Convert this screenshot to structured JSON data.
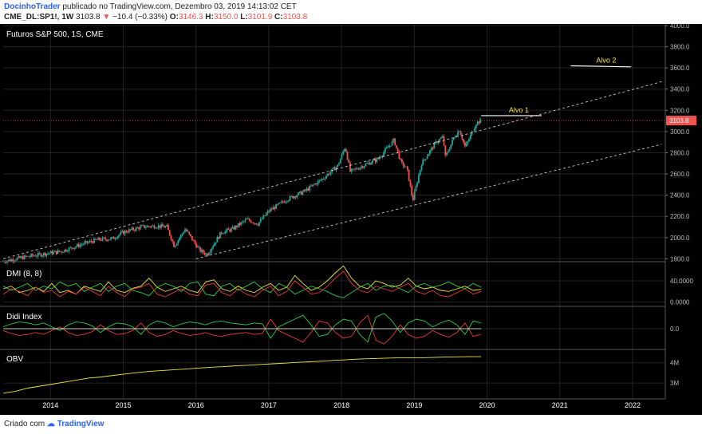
{
  "header": {
    "author": "DocinhoTrader",
    "published_text": "publicado no TradingView.com, Dezembro 03, 2019 14:13:02 CET",
    "symbol": "CME_DL:SP1!, 1W",
    "price": "3103.8",
    "change": "−10.4 (−0.33%)",
    "ohlc": [
      {
        "label": "O:",
        "value": "3146.3"
      },
      {
        "label": "H:",
        "value": "3150.0"
      },
      {
        "label": "L:",
        "value": "3101.9"
      },
      {
        "label": "C:",
        "value": "3103.8"
      }
    ]
  },
  "footer": {
    "created_with": "Criado com",
    "brand": "TradingView"
  },
  "colors": {
    "up": "#26a69a",
    "down": "#ef5350",
    "yellow": "#f0e442",
    "green": "#2ecc40",
    "red": "#e53935",
    "background": "#000000",
    "grid": "#222222"
  },
  "chart_data": [
    {
      "type": "candlestick",
      "title": "Futuros S&P 500, 1S, CME",
      "x_ticks": [
        "2014",
        "2015",
        "2016",
        "2017",
        "2018",
        "2019",
        "2020",
        "2021",
        "2022"
      ],
      "y_ticks": [
        "4000.0",
        "3800.0",
        "3600.0",
        "3400.0",
        "3200.0",
        "3000.0",
        "2800.0",
        "2600.0",
        "2400.0",
        "2200.0",
        "2000.0",
        "1800.0"
      ],
      "ylim": [
        1780,
        4000
      ],
      "xlim": [
        2013.35,
        2022.45
      ],
      "last_price_label": "3103.8",
      "price_path": [
        [
          2013.35,
          1775
        ],
        [
          2013.6,
          1810
        ],
        [
          2013.9,
          1845
        ],
        [
          2014.15,
          1870
        ],
        [
          2014.4,
          1930
        ],
        [
          2014.65,
          1980
        ],
        [
          2014.85,
          1990
        ],
        [
          2015.0,
          2050
        ],
        [
          2015.25,
          2100
        ],
        [
          2015.45,
          2110
        ],
        [
          2015.6,
          2100
        ],
        [
          2015.7,
          1920
        ],
        [
          2015.85,
          2080
        ],
        [
          2016.05,
          1880
        ],
        [
          2016.15,
          1840
        ],
        [
          2016.35,
          2050
        ],
        [
          2016.5,
          2080
        ],
        [
          2016.7,
          2170
        ],
        [
          2016.85,
          2130
        ],
        [
          2017.0,
          2250
        ],
        [
          2017.25,
          2360
        ],
        [
          2017.5,
          2440
        ],
        [
          2017.75,
          2560
        ],
        [
          2017.95,
          2680
        ],
        [
          2018.05,
          2860
        ],
        [
          2018.12,
          2620
        ],
        [
          2018.3,
          2680
        ],
        [
          2018.5,
          2740
        ],
        [
          2018.72,
          2920
        ],
        [
          2018.82,
          2700
        ],
        [
          2018.9,
          2650
        ],
        [
          2018.98,
          2350
        ],
        [
          2019.1,
          2700
        ],
        [
          2019.3,
          2900
        ],
        [
          2019.4,
          2950
        ],
        [
          2019.42,
          2750
        ],
        [
          2019.55,
          2950
        ],
        [
          2019.62,
          3020
        ],
        [
          2019.7,
          2850
        ],
        [
          2019.8,
          3000
        ],
        [
          2019.85,
          3080
        ],
        [
          2019.92,
          3103.8
        ]
      ],
      "annotations": [
        {
          "text": "Alvo 1",
          "x": 2020.3,
          "price": 3150
        },
        {
          "text": "Alvo 2",
          "x": 2021.5,
          "price": 3620
        }
      ],
      "trend_lines": [
        {
          "style": "dashed",
          "from": [
            2013.35,
            1800
          ],
          "to": [
            2022.4,
            3470
          ]
        },
        {
          "style": "dashed",
          "from": [
            2016.0,
            1800
          ],
          "to": [
            2022.4,
            2880
          ]
        }
      ],
      "target_lines": [
        {
          "label": "Alvo 1",
          "from": [
            2019.92,
            3150
          ],
          "to": [
            2020.75,
            3150
          ]
        },
        {
          "label": "Alvo 2",
          "from": [
            2021.15,
            3620
          ],
          "to": [
            2021.98,
            3610
          ]
        }
      ]
    },
    {
      "type": "line",
      "title": "DMI (8, 8)",
      "y_ticks": [
        "40.0000",
        "0.0000"
      ],
      "ylim": [
        -5,
        70
      ],
      "series": [
        {
          "color": "#f0e442",
          "values": [
            25,
            30,
            18,
            22,
            28,
            20,
            35,
            18,
            22,
            15,
            30,
            25,
            20,
            38,
            22,
            18,
            26,
            30,
            45,
            28,
            20,
            25,
            30,
            22,
            18,
            38,
            42,
            25,
            20,
            30,
            22,
            18,
            28,
            35,
            22,
            28,
            50,
            35,
            22,
            28,
            40,
            55,
            68,
            45,
            30,
            25,
            40,
            35,
            28,
            32,
            45,
            30,
            25,
            28,
            22,
            20,
            25,
            30,
            22,
            24
          ]
        },
        {
          "color": "#2ecc40",
          "values": [
            30,
            22,
            28,
            35,
            22,
            30,
            25,
            38,
            30,
            35,
            20,
            28,
            35,
            20,
            30,
            35,
            22,
            18,
            12,
            28,
            35,
            30,
            20,
            35,
            38,
            15,
            12,
            30,
            35,
            22,
            30,
            38,
            25,
            18,
            35,
            28,
            15,
            22,
            30,
            25,
            20,
            12,
            8,
            18,
            28,
            35,
            22,
            30,
            32,
            25,
            18,
            30,
            35,
            28,
            32,
            38,
            30,
            25,
            35,
            28
          ]
        },
        {
          "color": "#e53935",
          "values": [
            15,
            25,
            20,
            12,
            28,
            18,
            22,
            10,
            20,
            15,
            28,
            20,
            12,
            30,
            18,
            10,
            25,
            28,
            35,
            15,
            10,
            18,
            25,
            15,
            12,
            32,
            35,
            18,
            12,
            25,
            15,
            10,
            22,
            30,
            12,
            20,
            40,
            28,
            15,
            18,
            30,
            45,
            58,
            35,
            22,
            18,
            30,
            25,
            20,
            28,
            35,
            20,
            15,
            22,
            12,
            10,
            18,
            25,
            15,
            20
          ]
        }
      ]
    },
    {
      "type": "line",
      "title": "Didi Index",
      "y_ticks": [
        "0.0"
      ],
      "ylim": [
        -1,
        1
      ],
      "series": [
        {
          "color": "#2ecc40",
          "values": [
            0.1,
            0.25,
            0.35,
            0.3,
            0.2,
            0.3,
            0.1,
            -0.1,
            0.2,
            0.35,
            0.3,
            0.15,
            -0.2,
            0.1,
            0.3,
            0.25,
            0.1,
            -0.3,
            0.2,
            0.4,
            0.3,
            0.1,
            0.25,
            0.35,
            0.3,
            0.2,
            0.35,
            0.4,
            0.3,
            0.25,
            0.2,
            0.3,
            0.25,
            -0.5,
            0.1,
            0.3,
            0.5,
            0.7,
            0.2,
            -0.4,
            -0.3,
            0.2,
            0.5,
            0.4,
            -0.3,
            -0.7,
            0.6,
            0.8,
            0.4,
            -0.2,
            0.3,
            0.5,
            0.4,
            0.1,
            0.3,
            0.45,
            0.2,
            -0.3,
            0.4,
            0.3
          ]
        },
        {
          "color": "#e53935",
          "values": [
            -0.1,
            -0.25,
            -0.35,
            -0.3,
            -0.2,
            -0.3,
            -0.1,
            0.1,
            -0.2,
            -0.35,
            -0.3,
            -0.15,
            0.2,
            -0.1,
            -0.3,
            -0.25,
            -0.1,
            0.3,
            -0.2,
            -0.4,
            -0.3,
            -0.1,
            -0.25,
            -0.35,
            -0.3,
            -0.2,
            -0.35,
            -0.4,
            -0.3,
            -0.25,
            -0.2,
            -0.3,
            -0.25,
            0.5,
            -0.1,
            -0.3,
            -0.5,
            -0.7,
            -0.2,
            0.4,
            0.3,
            -0.2,
            -0.5,
            -0.4,
            0.3,
            0.7,
            -0.6,
            -0.8,
            -0.4,
            0.2,
            -0.3,
            -0.5,
            -0.4,
            -0.1,
            -0.3,
            -0.45,
            -0.2,
            0.3,
            -0.4,
            -0.3
          ]
        }
      ]
    },
    {
      "type": "line",
      "title": "OBV",
      "y_ticks": [
        "4M",
        "3M"
      ],
      "ylim": [
        2.3,
        4.5
      ],
      "series": [
        {
          "color": "#f0e442",
          "values": [
            2.5,
            2.6,
            2.75,
            2.85,
            2.95,
            3.05,
            3.15,
            3.25,
            3.3,
            3.38,
            3.45,
            3.52,
            3.58,
            3.62,
            3.66,
            3.7,
            3.74,
            3.78,
            3.81,
            3.85,
            3.88,
            3.92,
            3.95,
            3.98,
            4.02,
            4.05,
            4.08,
            4.12,
            4.15,
            4.18,
            4.2,
            4.22,
            4.24,
            4.25,
            4.24,
            4.26,
            4.28,
            4.29,
            4.3,
            4.3
          ]
        }
      ]
    }
  ]
}
